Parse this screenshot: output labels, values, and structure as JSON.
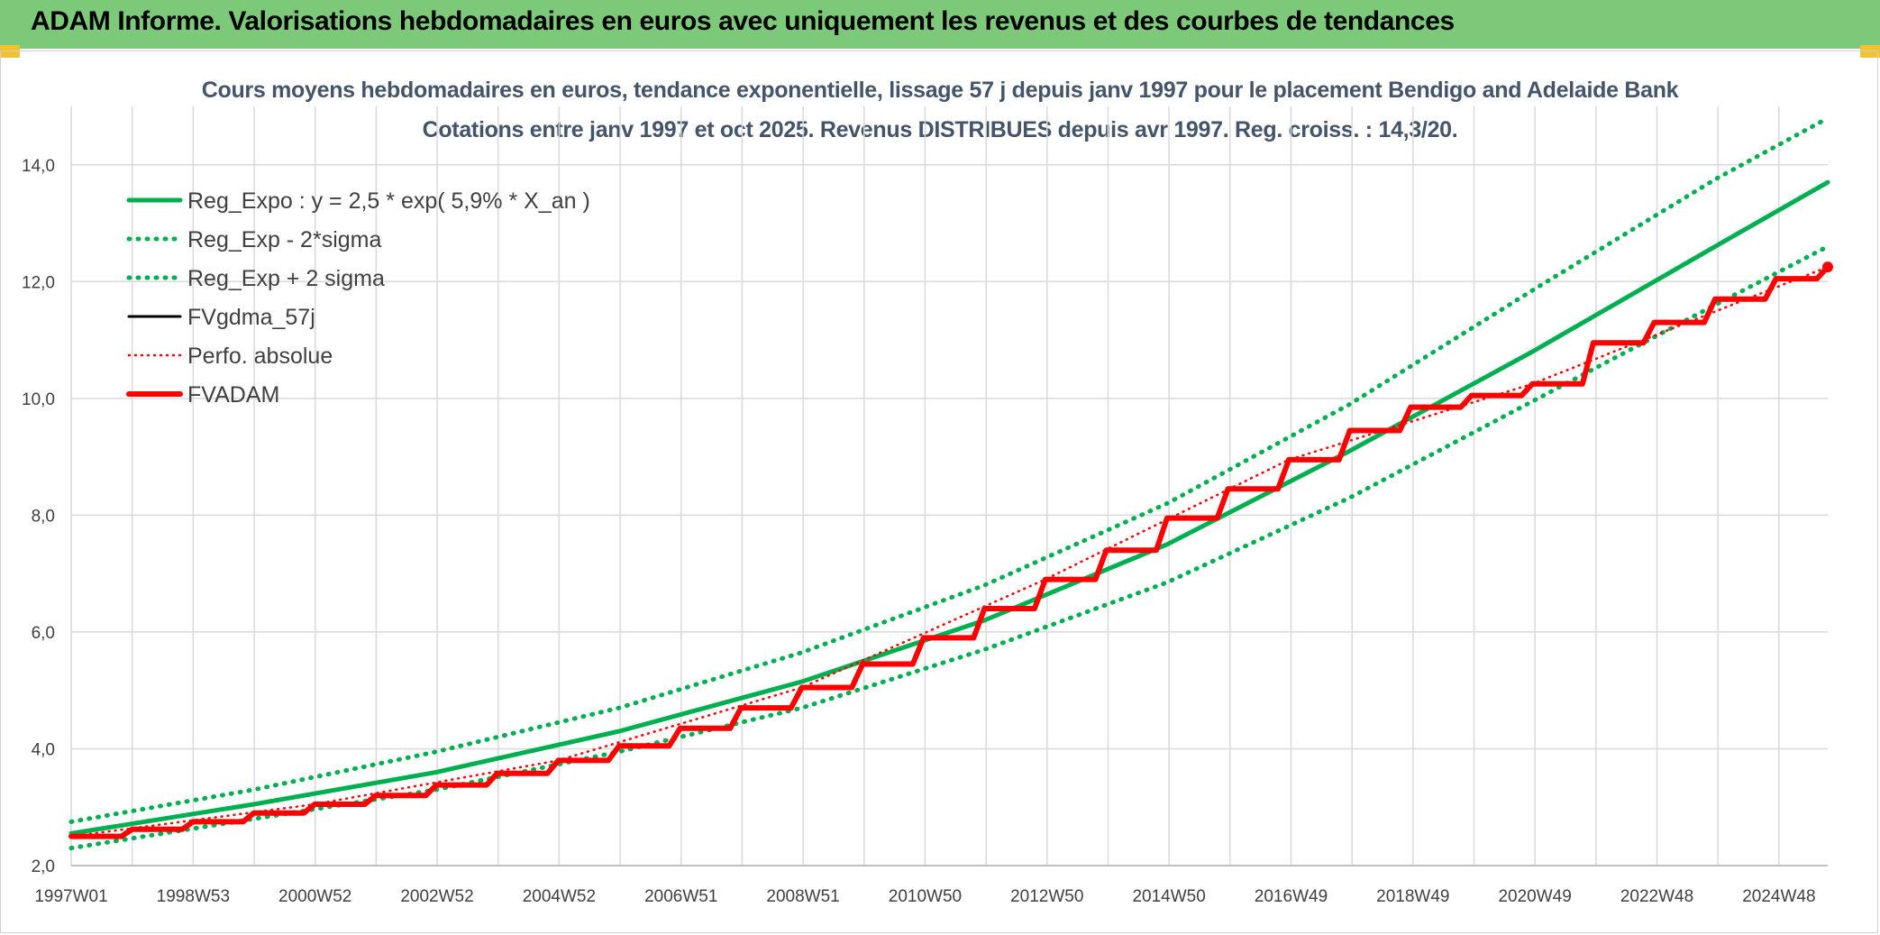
{
  "header": {
    "title": "ADAM Informe. Valorisations hebdomadaires en euros avec uniquement les revenus et des courbes de tendances"
  },
  "colors": {
    "banner": "#7dc97a",
    "corner": "#f2c230",
    "trend": "#00b050",
    "price": "#000000",
    "adam": "#ff0000",
    "title_text": "#44546a"
  },
  "chart_data": {
    "type": "line",
    "title": "Cours moyens hebdomadaires en euros, tendance exponentielle, lissage 57 j depuis janv 1997 pour le placement Bendigo and Adelaide Bank",
    "subtitle": "Cotations entre janv 1997 et oct 2025. Revenus DISTRIBUES depuis avr 1997. Reg. croiss. : 14,3/20.",
    "xlabel": "",
    "ylabel": "",
    "ylim": [
      2.0,
      15.0
    ],
    "yticks": [
      "2,0",
      "4,0",
      "6,0",
      "8,0",
      "10,0",
      "12,0",
      "14,0"
    ],
    "ytick_values": [
      2,
      4,
      6,
      8,
      10,
      12,
      14
    ],
    "xticks": [
      "1997W01",
      "1998W53",
      "2000W52",
      "2002W52",
      "2004W52",
      "2006W51",
      "2008W51",
      "2010W50",
      "2012W50",
      "2014W50",
      "2016W49",
      "2018W49",
      "2020W49",
      "2022W48",
      "2024W48"
    ],
    "x_range_years": [
      1997.0,
      2025.85
    ],
    "grid": true,
    "legend_position": "top-left",
    "series": [
      {
        "name": "Reg_Expo : y = 2,5 * exp( 5,9% *  X_an )",
        "style": "solid",
        "color": "#00b050",
        "x": [
          1997.0,
          2000.0,
          2003.0,
          2006.0,
          2009.0,
          2012.0,
          2015.0,
          2018.0,
          2021.0,
          2024.0,
          2025.85
        ],
        "values": [
          2.55,
          3.05,
          3.6,
          4.3,
          5.15,
          6.2,
          7.5,
          9.1,
          10.8,
          12.6,
          13.7
        ]
      },
      {
        "name": "Reg_Exp - 2*sigma",
        "style": "dotted",
        "color": "#00b050",
        "x": [
          1997.0,
          2000.0,
          2003.0,
          2006.0,
          2009.0,
          2012.0,
          2015.0,
          2018.0,
          2021.0,
          2024.0,
          2025.85
        ],
        "values": [
          2.3,
          2.8,
          3.3,
          3.95,
          4.7,
          5.7,
          6.85,
          8.3,
          9.95,
          11.6,
          12.6
        ]
      },
      {
        "name": "Reg_Exp + 2 sigma",
        "style": "dotted",
        "color": "#00b050",
        "x": [
          1997.0,
          2000.0,
          2003.0,
          2006.0,
          2009.0,
          2012.0,
          2015.0,
          2018.0,
          2021.0,
          2024.0,
          2025.85
        ],
        "values": [
          2.75,
          3.3,
          3.95,
          4.7,
          5.65,
          6.8,
          8.2,
          9.9,
          11.85,
          13.75,
          14.8
        ]
      },
      {
        "name": "FVgdma_57j",
        "style": "solid",
        "color": "#000000",
        "x": [
          1997.0,
          1998.0,
          1999.0,
          2000.0,
          2001.0,
          2002.0,
          2003.0,
          2004.0,
          2005.0,
          2006.0,
          2007.0,
          2008.0,
          2009.0,
          2010.0,
          2011.0,
          2012.0,
          2013.0,
          2014.0,
          2015.0,
          2016.0,
          2017.0,
          2018.0,
          2019.0,
          2020.0,
          2021.0,
          2022.0,
          2023.0,
          2024.0,
          2025.0,
          2025.85
        ],
        "values": [
          2.5,
          2.62,
          2.75,
          2.9,
          3.05,
          3.2,
          3.38,
          3.58,
          3.8,
          4.05,
          4.35,
          4.7,
          5.05,
          5.45,
          5.9,
          6.4,
          6.9,
          7.4,
          7.95,
          8.45,
          8.95,
          9.45,
          9.85,
          10.05,
          10.25,
          10.95,
          11.3,
          11.7,
          12.05,
          12.25
        ]
      },
      {
        "name": "Perfo. absolue",
        "style": "dotted",
        "color": "#ff0000",
        "x": [
          1997.0,
          2001.0,
          2005.0,
          2009.0,
          2013.0,
          2017.0,
          2021.0,
          2025.85
        ],
        "values": [
          2.5,
          3.05,
          3.8,
          5.05,
          6.9,
          8.95,
          10.25,
          12.25
        ]
      },
      {
        "name": "FVADAM",
        "style": "solid",
        "color": "#ff0000",
        "x": [
          1997.0,
          1998.0,
          1999.0,
          2000.0,
          2001.0,
          2002.0,
          2003.0,
          2004.0,
          2005.0,
          2006.0,
          2007.0,
          2008.0,
          2009.0,
          2010.0,
          2011.0,
          2012.0,
          2013.0,
          2014.0,
          2015.0,
          2016.0,
          2017.0,
          2018.0,
          2019.0,
          2020.0,
          2021.0,
          2022.0,
          2023.0,
          2024.0,
          2025.0,
          2025.85
        ],
        "values": [
          2.5,
          2.62,
          2.75,
          2.9,
          3.05,
          3.2,
          3.38,
          3.58,
          3.8,
          4.05,
          4.35,
          4.7,
          5.05,
          5.45,
          5.9,
          6.4,
          6.9,
          7.4,
          7.95,
          8.45,
          8.95,
          9.45,
          9.85,
          10.05,
          10.25,
          10.95,
          11.3,
          11.7,
          12.05,
          12.25
        ]
      }
    ]
  }
}
